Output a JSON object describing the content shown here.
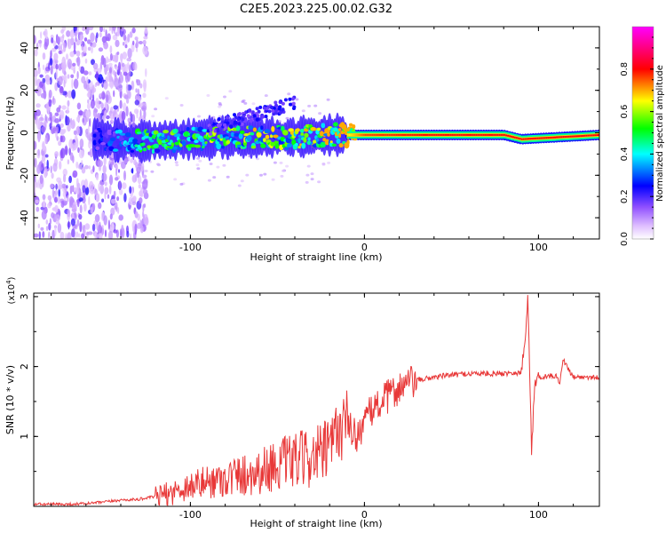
{
  "title": "C2E5.2023.225.00.02.G32",
  "chart_data": [
    {
      "type": "heatmap",
      "xlabel": "Height of straight line (km)",
      "ylabel": "Frequency (Hz)",
      "xlim": [
        -190,
        135
      ],
      "ylim": [
        -50,
        50
      ],
      "x_ticks": [
        -100,
        0,
        100
      ],
      "y_ticks": [
        -40,
        -20,
        0,
        20,
        40
      ],
      "colorbar": {
        "label": "Normalized spectral amplitude",
        "range": [
          0,
          1
        ],
        "ticks": [
          "0.0",
          "0.2",
          "0.4",
          "0.6",
          "0.8"
        ],
        "tick_values": [
          0.0,
          0.2,
          0.4,
          0.6,
          0.8
        ],
        "colormap": [
          "#ffffff",
          "#e8c8ff",
          "#a070ff",
          "#5000e0",
          "#0000ff",
          "#00ffff",
          "#00ff00",
          "#ffff00",
          "#ff0000",
          "#ff00ff"
        ]
      },
      "ridge": [
        {
          "x": -150,
          "y": -3,
          "amp": 0.2
        },
        {
          "x": -130,
          "y": -4,
          "amp": 0.4
        },
        {
          "x": -100,
          "y": -3,
          "amp": 0.45
        },
        {
          "x": -80,
          "y": -2,
          "amp": 0.5
        },
        {
          "x": -60,
          "y": -2,
          "amp": 0.5
        },
        {
          "x": -40,
          "y": -2,
          "amp": 0.5
        },
        {
          "x": -20,
          "y": -1,
          "amp": 0.6
        },
        {
          "x": 0,
          "y": -1,
          "amp": 0.9
        },
        {
          "x": 40,
          "y": -1,
          "amp": 0.95
        },
        {
          "x": 80,
          "y": -1,
          "amp": 0.95
        },
        {
          "x": 90,
          "y": -3,
          "amp": 0.95
        },
        {
          "x": 135,
          "y": -1,
          "amp": 0.95
        }
      ]
    },
    {
      "type": "line",
      "xlabel": "Height of straight line (km)",
      "ylabel": "SNR (10 * v/v)",
      "y_multiplier": "(x10",
      "y_multiplier_exp": "4",
      "y_multiplier_close": ")",
      "xlim": [
        -190,
        135
      ],
      "ylim": [
        0,
        3.05
      ],
      "x_ticks": [
        -100,
        0,
        100
      ],
      "y_ticks": [
        1,
        2,
        3
      ],
      "color": "#e83838",
      "series": [
        {
          "x": [
            -190,
            -170,
            -160,
            -150,
            -140,
            -130,
            -120,
            -110,
            -100,
            -90,
            -80,
            -70,
            -60,
            -50,
            -40,
            -30,
            -20,
            -15,
            -10,
            -5,
            0,
            5,
            10,
            15,
            20,
            25,
            30,
            40,
            50,
            60,
            70,
            80,
            85,
            90,
            92,
            94,
            96,
            98,
            100,
            110,
            112,
            114,
            120,
            130,
            135
          ],
          "y": [
            0.03,
            0.03,
            0.04,
            0.06,
            0.09,
            0.1,
            0.14,
            0.2,
            0.3,
            0.35,
            0.4,
            0.45,
            0.5,
            0.6,
            0.65,
            0.7,
            0.8,
            1.1,
            1.2,
            1.0,
            1.2,
            1.4,
            1.5,
            1.6,
            1.7,
            1.75,
            1.8,
            1.85,
            1.88,
            1.9,
            1.9,
            1.9,
            1.92,
            1.9,
            2.3,
            3.0,
            0.8,
            1.8,
            1.85,
            1.87,
            1.75,
            2.1,
            1.85,
            1.85,
            1.84
          ]
        }
      ]
    }
  ]
}
